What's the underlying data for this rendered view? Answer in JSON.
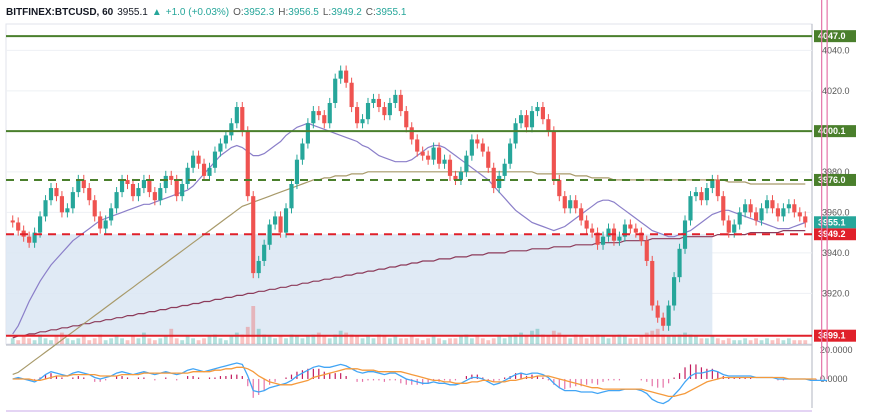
{
  "header": {
    "symbol": "BITFINEX:BTCUSD, 60",
    "last": "3955.1",
    "arrow": "▲",
    "change": "+1.0 (+0.03%)",
    "o_label": "O:",
    "o": "3952.3",
    "h_label": "H:",
    "h": "3956.5",
    "l_label": "L:",
    "l": "3949.2",
    "c_label": "C:",
    "c": "3955.1"
  },
  "colors": {
    "up": "#26a69a",
    "down": "#ef5350",
    "resistance": "#4a7f2c",
    "support": "#e0202a",
    "ma_short": "#8b7fc9",
    "ma_mid": "#a89a6a",
    "ma_long": "#8c3b5a",
    "range_fill": "#dbe6f3",
    "macd": "#42a5f5",
    "signal": "#f59a3c"
  },
  "chart_data": [
    {
      "type": "candlestick",
      "title": "BITFINEX:BTCUSD, 60",
      "ylim": [
        3895,
        4053
      ],
      "y_ticks": [
        "4040.0",
        "4020.0",
        "3980.0",
        "3960.0",
        "3940.0",
        "3920.0"
      ],
      "y_tick_values": [
        4040,
        4020,
        3980,
        3960,
        3940,
        3920
      ],
      "levels": [
        {
          "label": "4047.0",
          "value": 4047.0,
          "style": "solid",
          "color": "#4a7f2c"
        },
        {
          "label": "4000.1",
          "value": 4000.1,
          "style": "solid",
          "color": "#4a7f2c"
        },
        {
          "label": "3976.0",
          "value": 3976.0,
          "style": "dashed",
          "color": "#4a7f2c"
        },
        {
          "label": "3949.2",
          "value": 3949.2,
          "style": "dashed",
          "color": "#e0202a"
        },
        {
          "label": "3899.1",
          "value": 3899.1,
          "style": "solid",
          "color": "#e0202a"
        }
      ],
      "last_price": {
        "label": "3955.1",
        "value": 3955.1
      },
      "close": [
        3955,
        3951,
        3948,
        3945,
        3950,
        3958,
        3966,
        3972,
        3968,
        3960,
        3962,
        3970,
        3976,
        3972,
        3966,
        3958,
        3952,
        3956,
        3962,
        3970,
        3976,
        3974,
        3968,
        3972,
        3976,
        3970,
        3966,
        3972,
        3978,
        3976,
        3968,
        3974,
        3982,
        3988,
        3984,
        3978,
        3982,
        3990,
        3994,
        3998,
        4004,
        4012,
        4000,
        3968,
        3930,
        3936,
        3944,
        3954,
        3958,
        3950,
        3962,
        3974,
        3986,
        3994,
        4004,
        4010,
        4008,
        4004,
        4014,
        4026,
        4030,
        4024,
        4012,
        4004,
        4006,
        4014,
        4016,
        4012,
        4008,
        4014,
        4018,
        4010,
        4002,
        3996,
        3990,
        3988,
        3986,
        3992,
        3984,
        3986,
        3978,
        3976,
        3980,
        3988,
        3996,
        3994,
        3990,
        3982,
        3972,
        3978,
        3984,
        3994,
        4004,
        4008,
        4002,
        4010,
        4012,
        4006,
        4000,
        3976,
        3968,
        3962,
        3966,
        3962,
        3956,
        3952,
        3950,
        3944,
        3948,
        3952,
        3946,
        3948,
        3954,
        3952,
        3950,
        3946,
        3936,
        3914,
        3908,
        3904,
        3914,
        3928,
        3942,
        3956,
        3968,
        3970,
        3966,
        3972,
        3976,
        3968,
        3956,
        3950,
        3954,
        3960,
        3964,
        3960,
        3956,
        3962,
        3966,
        3962,
        3958,
        3962,
        3964,
        3960,
        3958,
        3955
      ],
      "ma_short": [
        3900,
        3904,
        3910,
        3916,
        3921,
        3926,
        3930,
        3934,
        3937,
        3940,
        3943,
        3946,
        3948,
        3950,
        3952,
        3954,
        3956,
        3957,
        3958,
        3959,
        3960,
        3961,
        3962,
        3963,
        3964,
        3964,
        3965,
        3966,
        3967,
        3968,
        3969,
        3970,
        3971,
        3973,
        3976,
        3979,
        3982,
        3985,
        3988,
        3990,
        3992,
        3993,
        3992,
        3990,
        3988,
        3988,
        3989,
        3991,
        3993,
        3995,
        3998,
        4000,
        4002,
        4003,
        4004,
        4003,
        4002,
        4001,
        4000,
        3999,
        3998,
        3997,
        3996,
        3995,
        3993,
        3992,
        3990,
        3988,
        3987,
        3986,
        3985,
        3985,
        3985,
        3986,
        3988,
        3990,
        3992,
        3993,
        3993,
        3992,
        3990,
        3988,
        3986,
        3984,
        3982,
        3980,
        3978,
        3976,
        3973,
        3970,
        3967,
        3964,
        3961,
        3959,
        3957,
        3955,
        3954,
        3953,
        3952,
        3951,
        3952,
        3953,
        3955,
        3957,
        3959,
        3961,
        3963,
        3965,
        3966,
        3966,
        3965,
        3963,
        3961,
        3959,
        3957,
        3955,
        3953,
        3951,
        3950,
        3949,
        3948,
        3948,
        3949,
        3950,
        3951,
        3953,
        3955,
        3957,
        3959,
        3960,
        3961,
        3961,
        3960,
        3959,
        3958,
        3957,
        3956,
        3955,
        3954,
        3953,
        3952,
        3952,
        3952,
        3953,
        3954,
        3955
      ],
      "ma_mid": [
        3880,
        3881,
        3883,
        3885,
        3887,
        3889,
        3891,
        3893,
        3895,
        3897,
        3899,
        3901,
        3903,
        3905,
        3907,
        3909,
        3911,
        3913,
        3915,
        3917,
        3919,
        3921,
        3923,
        3925,
        3927,
        3929,
        3931,
        3933,
        3935,
        3937,
        3939,
        3941,
        3943,
        3945,
        3947,
        3949,
        3951,
        3953,
        3955,
        3957,
        3959,
        3961,
        3963,
        3964,
        3965,
        3966,
        3967,
        3968,
        3969,
        3970,
        3971,
        3972,
        3973,
        3974,
        3975,
        3976,
        3976,
        3977,
        3977,
        3978,
        3978,
        3978,
        3979,
        3979,
        3979,
        3980,
        3980,
        3980,
        3980,
        3980,
        3980,
        3980,
        3980,
        3980,
        3980,
        3980,
        3980,
        3980,
        3980,
        3980,
        3980,
        3980,
        3980,
        3980,
        3980,
        3980,
        3980,
        3980,
        3980,
        3980,
        3980,
        3980,
        3980,
        3980,
        3980,
        3980,
        3979,
        3979,
        3979,
        3979,
        3979,
        3979,
        3979,
        3978,
        3978,
        3978,
        3977,
        3977,
        3977,
        3977,
        3976,
        3976,
        3976,
        3976,
        3976,
        3976,
        3976,
        3976,
        3976,
        3976,
        3976,
        3976,
        3976,
        3976,
        3976,
        3976,
        3976,
        3976,
        3976,
        3976,
        3976,
        3975,
        3975,
        3975,
        3975,
        3974,
        3974,
        3974,
        3974,
        3974,
        3974,
        3974,
        3974,
        3974,
        3974,
        3974
      ],
      "ma_long": [
        3898,
        3899,
        3899,
        3900,
        3900,
        3901,
        3901,
        3902,
        3902,
        3903,
        3903,
        3904,
        3904,
        3905,
        3905,
        3906,
        3906,
        3907,
        3907,
        3908,
        3908,
        3909,
        3909,
        3910,
        3910,
        3911,
        3911,
        3912,
        3912,
        3913,
        3913,
        3914,
        3914,
        3915,
        3915,
        3916,
        3916,
        3917,
        3917,
        3918,
        3918,
        3919,
        3919,
        3920,
        3920,
        3921,
        3921,
        3922,
        3922,
        3923,
        3923,
        3924,
        3924,
        3925,
        3925,
        3926,
        3926,
        3927,
        3927,
        3928,
        3928,
        3929,
        3929,
        3930,
        3930,
        3931,
        3931,
        3932,
        3932,
        3933,
        3933,
        3934,
        3934,
        3935,
        3935,
        3936,
        3936,
        3936,
        3937,
        3937,
        3937,
        3938,
        3938,
        3938,
        3939,
        3939,
        3939,
        3940,
        3940,
        3940,
        3940,
        3941,
        3941,
        3941,
        3941,
        3942,
        3942,
        3942,
        3942,
        3943,
        3943,
        3943,
        3943,
        3944,
        3944,
        3944,
        3944,
        3945,
        3945,
        3945,
        3945,
        3945,
        3946,
        3946,
        3946,
        3946,
        3946,
        3947,
        3947,
        3947,
        3947,
        3947,
        3947,
        3948,
        3948,
        3948,
        3948,
        3948,
        3948,
        3949,
        3949,
        3949,
        3949,
        3949,
        3949,
        3950,
        3950,
        3950,
        3950,
        3950,
        3950,
        3951,
        3951,
        3951,
        3951,
        3951
      ],
      "range_box": {
        "x_start": 0,
        "x_end": 128,
        "y_from": 3949.2,
        "y_to": 3899.1
      },
      "volume": [
        3,
        2,
        4,
        3,
        2,
        5,
        3,
        2,
        4,
        6,
        3,
        2,
        3,
        4,
        2,
        3,
        5,
        2,
        3,
        4,
        3,
        2,
        4,
        3,
        6,
        3,
        2,
        3,
        4,
        8,
        3,
        2,
        4,
        3,
        2,
        3,
        4,
        5,
        3,
        2,
        4,
        6,
        5,
        9,
        20,
        8,
        5,
        4,
        3,
        4,
        3,
        5,
        4,
        3,
        4,
        5,
        6,
        4,
        3,
        5,
        7,
        6,
        5,
        4,
        3,
        4,
        3,
        5,
        4,
        3,
        4,
        3,
        3,
        4,
        3,
        2,
        3,
        4,
        3,
        2,
        3,
        3,
        4,
        5,
        3,
        4,
        3,
        2,
        3,
        4,
        3,
        4,
        5,
        6,
        4,
        7,
        8,
        5,
        4,
        7,
        6,
        4,
        3,
        5,
        4,
        3,
        4,
        5,
        4,
        3,
        4,
        5,
        4,
        3,
        3,
        4,
        6,
        7,
        8,
        5,
        4,
        4,
        5,
        6,
        5,
        4,
        3,
        3,
        4,
        3,
        2,
        3,
        2,
        2,
        3,
        2,
        3,
        2,
        3,
        2,
        3,
        2,
        3,
        2,
        2,
        2
      ]
    },
    {
      "type": "line",
      "y_ticks": [
        "20.0000",
        "0.0000"
      ],
      "y_tick_values": [
        20,
        0
      ],
      "ylim": [
        -20,
        22
      ],
      "series": [
        {
          "values": [
            0,
            1,
            0,
            -1,
            -2,
            0,
            3,
            5,
            4,
            3,
            2,
            4,
            5,
            4,
            3,
            1,
            0,
            1,
            2,
            4,
            5,
            4,
            3,
            4,
            5,
            4,
            3,
            4,
            5,
            4,
            3,
            4,
            6,
            7,
            6,
            5,
            6,
            7,
            8,
            9,
            10,
            11,
            10,
            2,
            -8,
            -9,
            -8,
            -6,
            -5,
            -4,
            -3,
            -1,
            2,
            4,
            6,
            8,
            9,
            8,
            8,
            9,
            10,
            9,
            7,
            5,
            4,
            5,
            5,
            4,
            3,
            4,
            4,
            2,
            0,
            -1,
            -2,
            -3,
            -3,
            -2,
            -3,
            -3,
            -4,
            -4,
            -3,
            -1,
            1,
            1,
            0,
            -2,
            -4,
            -3,
            -1,
            1,
            3,
            4,
            3,
            4,
            4,
            3,
            1,
            -3,
            -6,
            -8,
            -8,
            -8,
            -9,
            -9,
            -9,
            -10,
            -9,
            -8,
            -8,
            -8,
            -7,
            -7,
            -7,
            -8,
            -10,
            -14,
            -16,
            -17,
            -15,
            -11,
            -7,
            -2,
            2,
            4,
            4,
            5,
            6,
            5,
            3,
            2,
            2,
            2,
            2,
            2,
            1,
            1,
            1,
            1,
            0,
            0,
            0,
            0,
            0,
            0,
            -1,
            -1,
            -1,
            -1
          ]
        },
        {
          "values": [
            0,
            0,
            0,
            0,
            -1,
            -1,
            0,
            1,
            2,
            2,
            2,
            3,
            3,
            3,
            3,
            3,
            2,
            2,
            2,
            2,
            3,
            3,
            3,
            3,
            4,
            4,
            4,
            4,
            4,
            4,
            4,
            4,
            4,
            5,
            5,
            5,
            5,
            6,
            6,
            7,
            7,
            8,
            8,
            7,
            5,
            2,
            0,
            -2,
            -3,
            -4,
            -4,
            -4,
            -3,
            -2,
            -1,
            1,
            2,
            3,
            4,
            5,
            6,
            7,
            7,
            7,
            6,
            6,
            6,
            5,
            5,
            5,
            5,
            5,
            4,
            3,
            2,
            1,
            0,
            -1,
            -1,
            -2,
            -2,
            -3,
            -3,
            -3,
            -2,
            -2,
            -1,
            -1,
            -2,
            -2,
            -2,
            -1,
            -1,
            0,
            1,
            1,
            2,
            2,
            2,
            1,
            0,
            -1,
            -2,
            -3,
            -4,
            -5,
            -6,
            -6,
            -7,
            -7,
            -7,
            -7,
            -7,
            -7,
            -7,
            -7,
            -8,
            -9,
            -10,
            -11,
            -12,
            -12,
            -11,
            -10,
            -8,
            -6,
            -4,
            -2,
            -1,
            0,
            1,
            1,
            1,
            1,
            1,
            1,
            1,
            1,
            1,
            1,
            1,
            1,
            0,
            0,
            0,
            0,
            0,
            0
          ]
        }
      ]
    }
  ]
}
